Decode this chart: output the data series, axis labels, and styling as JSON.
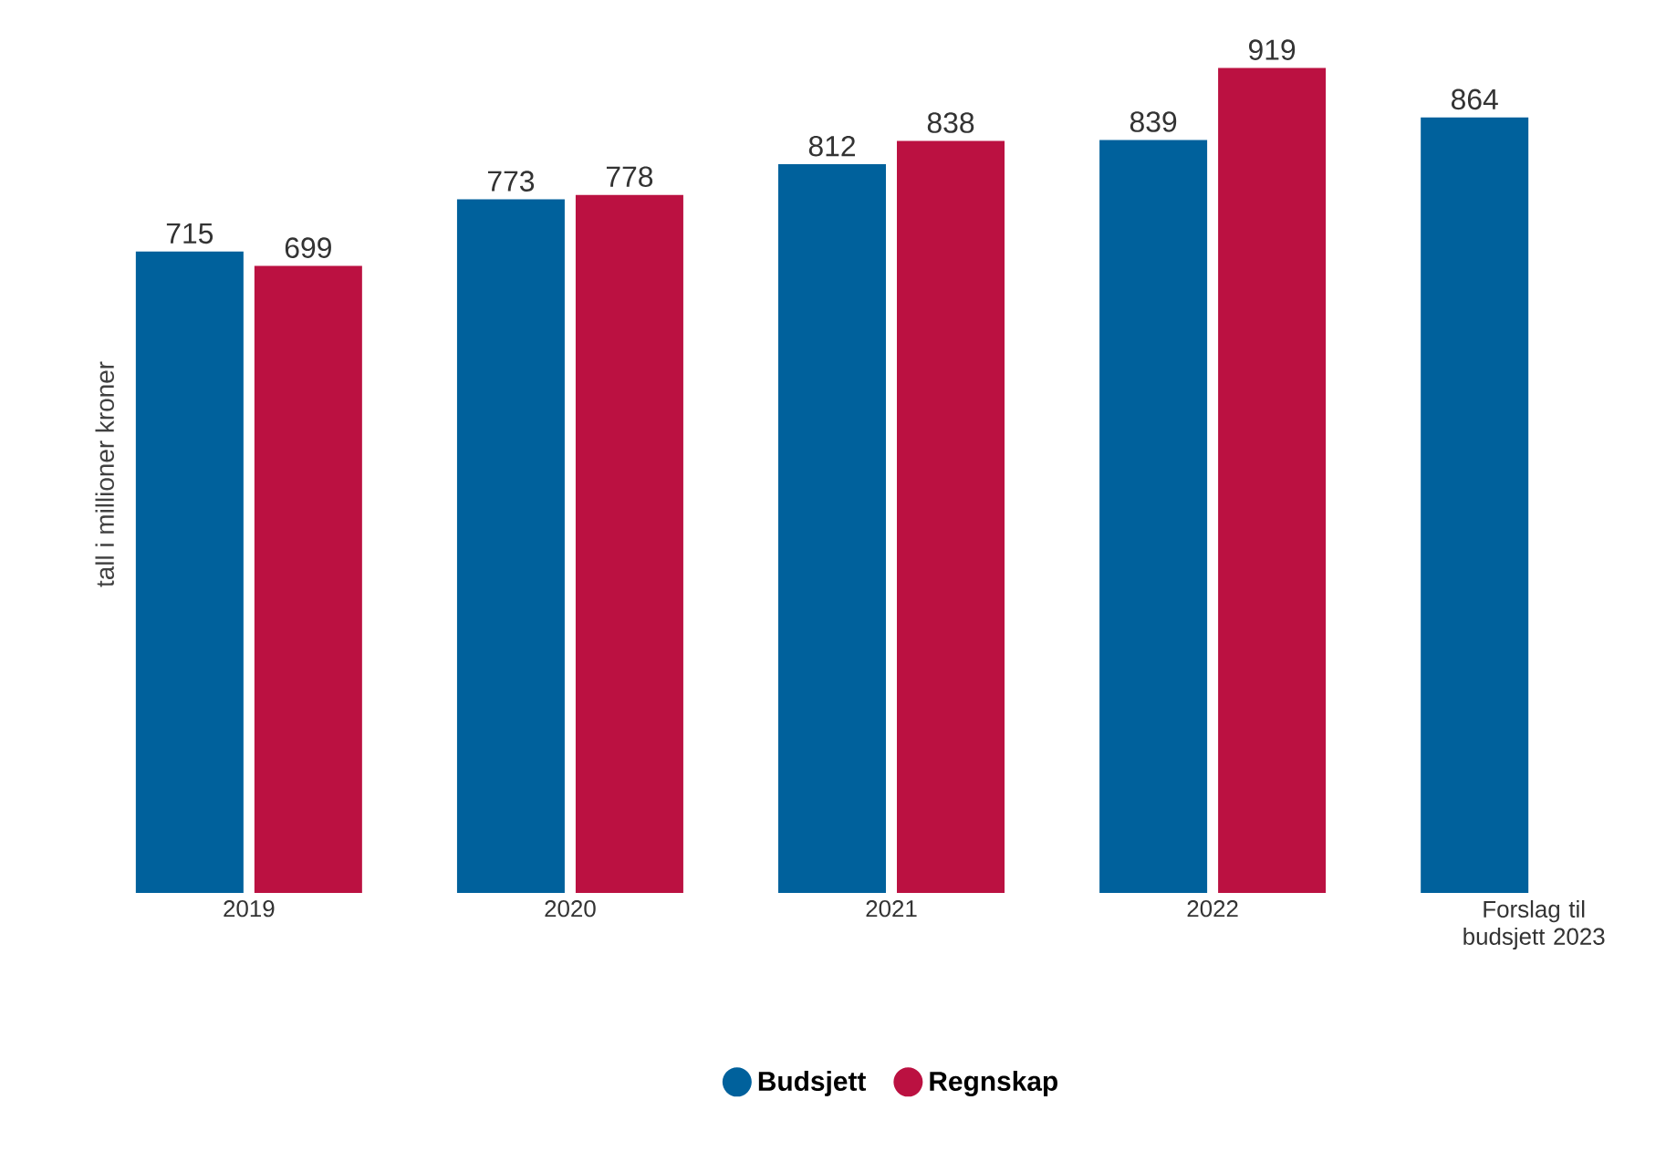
{
  "chart_data": {
    "type": "bar",
    "ylabel": "tall i millioner kroner",
    "categories": [
      "2019",
      "2020",
      "2021",
      "2022",
      "Forslag til budsjett 2023"
    ],
    "series": [
      {
        "name": "Budsjett",
        "color": "#00619c",
        "values": [
          715,
          773,
          812,
          839,
          864
        ]
      },
      {
        "name": "Regnskap",
        "color": "#bb1141",
        "values": [
          699,
          778,
          838,
          919,
          null
        ]
      }
    ],
    "data_labels": true,
    "tick_labels": "x",
    "grid": false,
    "legend": "bottom"
  }
}
